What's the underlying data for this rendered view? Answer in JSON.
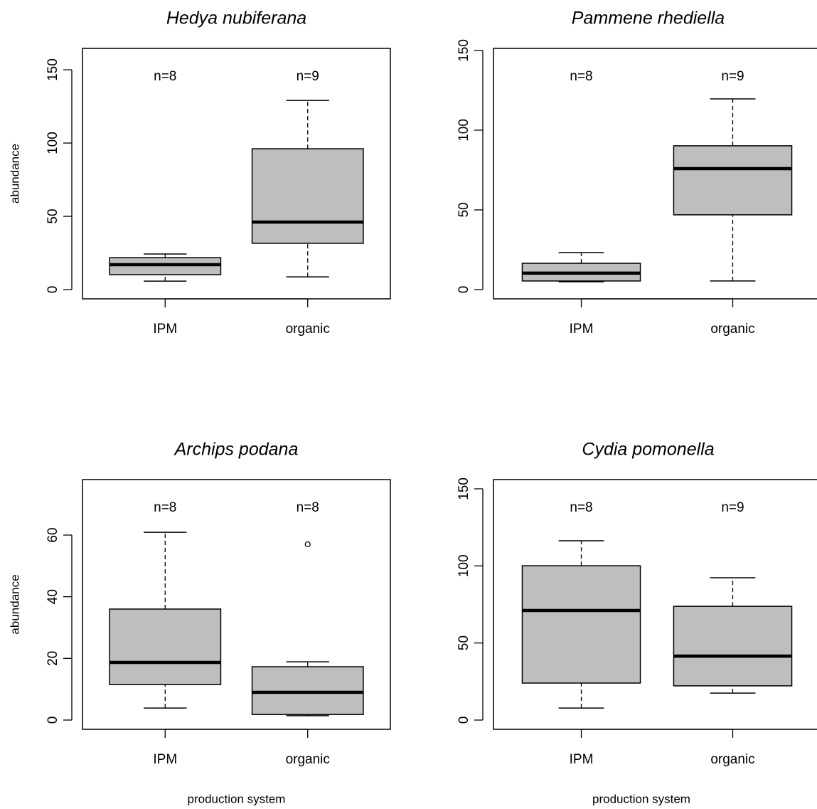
{
  "chart_data": [
    {
      "type": "box",
      "title": "Hedya nubiferana",
      "ylabel": "abundance",
      "categories": [
        "IPM",
        "organic"
      ],
      "annotations": [
        "n=8",
        "n=9"
      ],
      "color": "#bebebe",
      "boxes": [
        {
          "whisker_low": 5.8,
          "q1": 10.2,
          "median": 17,
          "q3": 21.8,
          "whisker_high": 24.3
        },
        {
          "whisker_low": 8.7,
          "q1": 31.6,
          "median": 46.1,
          "q3": 96.1,
          "whisker_high": 129.1
        }
      ],
      "ylim": [
        -6.3,
        164.6
      ],
      "yticks": [
        0,
        50,
        100,
        150
      ]
    },
    {
      "type": "box",
      "title": "Pammene rhediella",
      "categories": [
        "IPM",
        "organic"
      ],
      "annotations": [
        "n=8",
        "n=9"
      ],
      "color": "#bebebe",
      "boxes": [
        {
          "whisker_low": 4.9,
          "q1": 5.4,
          "median": 10.3,
          "q3": 16.5,
          "whisker_high": 23.2
        },
        {
          "whisker_low": 5.4,
          "q1": 46.9,
          "median": 75.9,
          "q3": 90.2,
          "whisker_high": 119.6
        }
      ],
      "ylim": [
        -5.8,
        151.3
      ],
      "yticks": [
        0,
        50,
        100,
        150
      ]
    },
    {
      "type": "box",
      "title": "Archips podana",
      "ylabel": "abundance",
      "xlabel": "production system",
      "categories": [
        "IPM",
        "organic"
      ],
      "annotations": [
        "n=8",
        "n=8"
      ],
      "color": "#bebebe",
      "boxes": [
        {
          "whisker_low": 3.9,
          "q1": 11.5,
          "median": 18.7,
          "q3": 36.0,
          "whisker_high": 60.9
        },
        {
          "whisker_low": 1.4,
          "q1": 1.8,
          "median": 9.0,
          "q3": 17.3,
          "whisker_high": 18.9,
          "outliers": [
            57.0
          ]
        }
      ],
      "ylim": [
        -3.0,
        78.0
      ],
      "yticks": [
        0,
        20,
        40,
        60
      ]
    },
    {
      "type": "box",
      "title": "Cydia pomonella",
      "xlabel": "production system",
      "categories": [
        "IPM",
        "organic"
      ],
      "annotations": [
        "n=8",
        "n=9"
      ],
      "color": "#bebebe",
      "boxes": [
        {
          "whisker_low": 7.8,
          "q1": 24.0,
          "median": 71.1,
          "q3": 100.1,
          "whisker_high": 116.3
        },
        {
          "whisker_low": 17.5,
          "q1": 22.2,
          "median": 41.5,
          "q3": 73.8,
          "whisker_high": 92.3
        }
      ],
      "ylim": [
        -6.0,
        156.0
      ],
      "yticks": [
        0,
        50,
        100,
        150
      ]
    }
  ]
}
